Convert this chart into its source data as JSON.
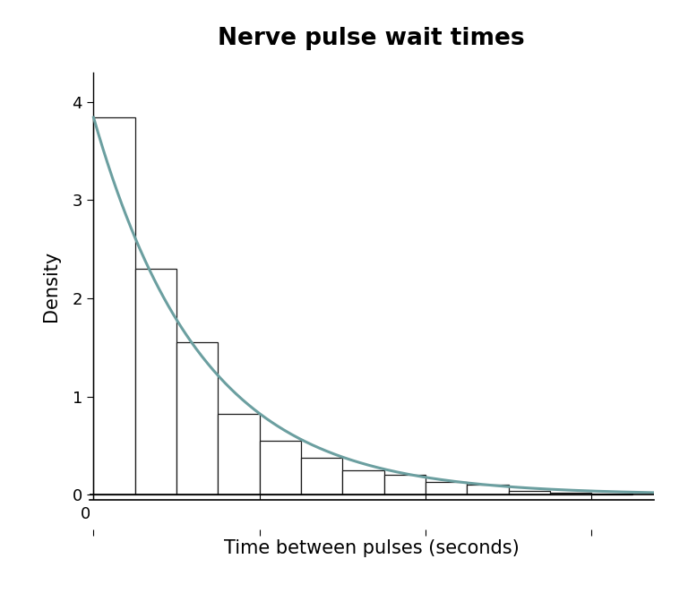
{
  "title": "Nerve pulse wait times",
  "xlabel": "Time between pulses (seconds)",
  "ylabel": "Density",
  "title_fontsize": 19,
  "label_fontsize": 15,
  "tick_fontsize": 13,
  "bar_heights": [
    3.84,
    2.3,
    1.55,
    0.82,
    0.55,
    0.38,
    0.25,
    0.2,
    0.13,
    0.1,
    0.04,
    0.02,
    0.01
  ],
  "bin_width": 0.1,
  "bar_color": "#ffffff",
  "bar_edge_color": "#1a1a1a",
  "curve_color": "#6b9fa0",
  "curve_lw": 2.2,
  "lambda": 3.84,
  "xlim": [
    -0.01,
    1.35
  ],
  "ylim": [
    -0.05,
    4.3
  ],
  "yticks": [
    0,
    1,
    2,
    3,
    4
  ],
  "xticks": [
    0.0,
    0.4,
    0.8,
    1.2
  ],
  "background_color": "#ffffff"
}
